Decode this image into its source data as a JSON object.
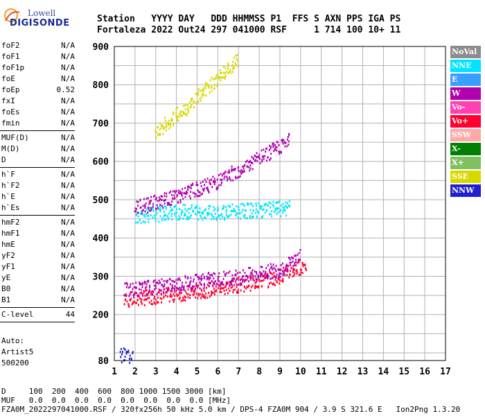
{
  "logo": {
    "line1": "Lowell",
    "line2": "DIGISONDE"
  },
  "header": {
    "line1": "Station   YYYY DAY   DDD HHMMSS P1  FFS S AXN PPS IGA PS",
    "line2": "Fortaleza 2022 Out24 297 041000 RSF     1 714 100 10+ 11"
  },
  "params_group1": [
    {
      "name": "foF2",
      "value": "N/A"
    },
    {
      "name": "foF1",
      "value": "N/A"
    },
    {
      "name": "foF1p",
      "value": "N/A"
    },
    {
      "name": "foE",
      "value": "N/A"
    },
    {
      "name": "foEp",
      "value": "0.52"
    },
    {
      "name": "fxI",
      "value": "N/A"
    },
    {
      "name": "foEs",
      "value": "N/A"
    },
    {
      "name": "fmin",
      "value": "N/A"
    }
  ],
  "params_group2": [
    {
      "name": "MUF(D)",
      "value": "N/A"
    },
    {
      "name": "M(D)",
      "value": "N/A"
    },
    {
      "name": "D",
      "value": "N/A"
    }
  ],
  "params_group3": [
    {
      "name": "h`F",
      "value": "N/A"
    },
    {
      "name": "h`F2",
      "value": "N/A"
    },
    {
      "name": "h`E",
      "value": "N/A"
    },
    {
      "name": "h`Es",
      "value": "N/A"
    }
  ],
  "params_group4": [
    {
      "name": "hmF2",
      "value": "N/A"
    },
    {
      "name": "hmF1",
      "value": "N/A"
    },
    {
      "name": "hmE",
      "value": "N/A"
    },
    {
      "name": "yF2",
      "value": "N/A"
    },
    {
      "name": "yF1",
      "value": "N/A"
    },
    {
      "name": "yE",
      "value": "N/A"
    },
    {
      "name": "B0",
      "value": "N/A"
    },
    {
      "name": "B1",
      "value": "N/A"
    }
  ],
  "params_group5": [
    {
      "name": "C-level",
      "value": "44"
    }
  ],
  "auto": {
    "line1": "Auto:",
    "line2": "Artist5",
    "line3": "500200"
  },
  "legend": [
    {
      "label": "NoVal",
      "color": "#8c8c8c"
    },
    {
      "label": "NNE",
      "color": "#00e5ff"
    },
    {
      "label": "E",
      "color": "#3b9fff"
    },
    {
      "label": "W",
      "color": "#b000b0"
    },
    {
      "label": "Vo-",
      "color": "#ff40b0"
    },
    {
      "label": "Vo+",
      "color": "#ff0030"
    },
    {
      "label": "SSW",
      "color": "#ffa8a8"
    },
    {
      "label": "X-",
      "color": "#008000"
    },
    {
      "label": "X+",
      "color": "#80c060"
    },
    {
      "label": "SSE",
      "color": "#d8d800"
    },
    {
      "label": "NNW",
      "color": "#2020d0"
    }
  ],
  "footer": {
    "line1": "D     100  200  400  600  800 1000 1500 3000 [km]",
    "line2": "MUF   0.0  0.0  0.0  0.0  0.0  0.0  0.0  0.0 [MHz]",
    "line3": "FZA0M_2022297041000.RSF / 320fx256h 50 kHz 5.0 km / DPS-4 FZA0M 904 / 3.9 S 321.6 E   Ion2Png 1.3.20"
  },
  "chart_data": {
    "type": "scatter",
    "xlim": [
      1,
      17
    ],
    "ylim": [
      80,
      900
    ],
    "x_ticks": [
      1,
      2,
      3,
      4,
      5,
      6,
      7,
      8,
      9,
      10,
      11,
      12,
      13,
      14,
      15,
      16,
      17
    ],
    "y_ticks": [
      80,
      200,
      300,
      400,
      500,
      600,
      700,
      800,
      900
    ],
    "grid": true,
    "series": [
      {
        "color_key": "Vo+",
        "trace": [
          [
            1.5,
            240
          ],
          [
            3,
            250
          ],
          [
            5,
            262
          ],
          [
            7,
            280
          ],
          [
            8.5,
            295
          ],
          [
            9.5,
            315
          ],
          [
            10.3,
            335
          ]
        ]
      },
      {
        "color_key": "W",
        "trace": [
          [
            1.5,
            265
          ],
          [
            3,
            275
          ],
          [
            5,
            290
          ],
          [
            7,
            300
          ],
          [
            9,
            320
          ],
          [
            10,
            355
          ]
        ]
      },
      {
        "color_key": "NNE",
        "trace": [
          [
            2,
            460
          ],
          [
            4,
            470
          ],
          [
            6,
            470
          ],
          [
            8,
            475
          ],
          [
            9.5,
            480
          ]
        ]
      },
      {
        "color_key": "W",
        "trace": [
          [
            2,
            480
          ],
          [
            4,
            510
          ],
          [
            6,
            550
          ],
          [
            8,
            610
          ],
          [
            9.5,
            660
          ]
        ]
      },
      {
        "color_key": "SSE",
        "trace": [
          [
            3,
            680
          ],
          [
            4,
            720
          ],
          [
            5,
            770
          ],
          [
            6,
            820
          ],
          [
            7,
            870
          ]
        ]
      },
      {
        "color_key": "NNW",
        "trace": [
          [
            1.3,
            95
          ],
          [
            1.9,
            95
          ]
        ]
      }
    ]
  }
}
